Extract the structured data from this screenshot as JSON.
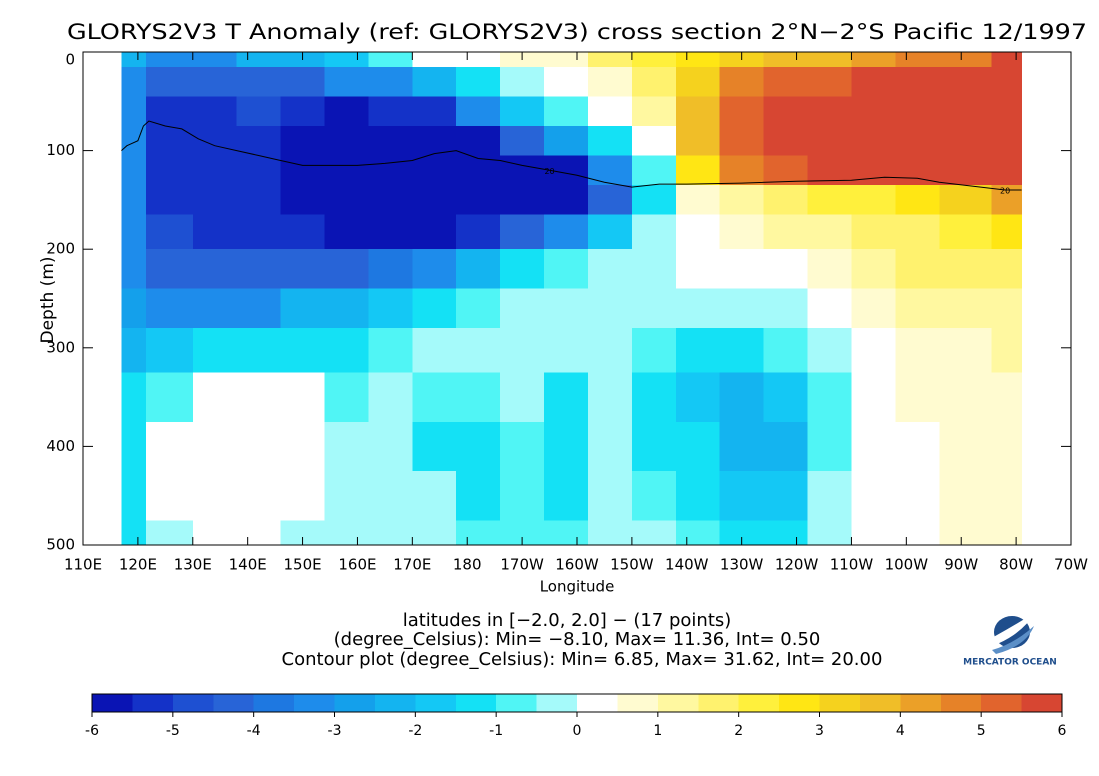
{
  "chart_data": {
    "type": "heatmap",
    "title": "GLORYS2V3 T Anomaly (ref: GLORYS2V3) cross section 2°N−2°S Pacific 12/1997",
    "x_label": "Longitude",
    "y_label": "Depth (m)",
    "notes": [
      "latitudes in [−2.0, 2.0] − (17 points)",
      "(degree_Celsius): Min= −8.10, Max= 11.36, Int= 0.50",
      "Contour plot (degree_Celsius): Min= 6.85, Max= 31.62, Int= 20.00"
    ],
    "logo": "MERCATOR OCEAN",
    "xlim": [
      110,
      290
    ],
    "xticks": [
      {
        "value": 110,
        "label": "110E"
      },
      {
        "value": 120,
        "label": "120E"
      },
      {
        "value": 130,
        "label": "130E"
      },
      {
        "value": 140,
        "label": "140E"
      },
      {
        "value": 150,
        "label": "150E"
      },
      {
        "value": 160,
        "label": "160E"
      },
      {
        "value": 170,
        "label": "170E"
      },
      {
        "value": 180,
        "label": "180"
      },
      {
        "value": 190,
        "label": "170W"
      },
      {
        "value": 200,
        "label": "160W"
      },
      {
        "value": 210,
        "label": "150W"
      },
      {
        "value": 220,
        "label": "140W"
      },
      {
        "value": 230,
        "label": "130W"
      },
      {
        "value": 240,
        "label": "120W"
      },
      {
        "value": 250,
        "label": "110W"
      },
      {
        "value": 260,
        "label": "100W"
      },
      {
        "value": 270,
        "label": "90W"
      },
      {
        "value": 280,
        "label": "80W"
      },
      {
        "value": 290,
        "label": "70W"
      }
    ],
    "ylim": [
      0,
      500
    ],
    "yticks": [
      0,
      100,
      200,
      300,
      400,
      500
    ],
    "y_inverted": true,
    "x": [
      117,
      126,
      134,
      142,
      150,
      158,
      166,
      174,
      182,
      190,
      198,
      206,
      214,
      222,
      230,
      238,
      246,
      254,
      262,
      270,
      281
    ],
    "y": [
      0,
      30,
      60,
      90,
      120,
      150,
      180,
      220,
      260,
      300,
      350,
      400,
      450,
      500
    ],
    "z": [
      [
        -2,
        -3,
        -3,
        -2,
        -2,
        -1.5,
        -0.5,
        0.5,
        0.5,
        1,
        1,
        2,
        2.5,
        3,
        3.5,
        4,
        4,
        4.5,
        5,
        5,
        6
      ],
      [
        -3,
        -4,
        -4,
        -4,
        -4,
        -3,
        -3,
        -2,
        -1,
        0,
        0.5,
        1,
        2,
        3.5,
        5,
        5.5,
        5.5,
        6,
        6,
        6,
        6
      ],
      [
        -3,
        -5,
        -5,
        -4.5,
        -5,
        -6,
        -5,
        -5,
        -3,
        -1.5,
        -0.5,
        0.5,
        1.5,
        4,
        5.5,
        6,
        6,
        6,
        6,
        6,
        6
      ],
      [
        -3,
        -5,
        -5,
        -5,
        -6,
        -6,
        -6,
        -6,
        -6,
        -4,
        -2.5,
        -1,
        0.5,
        4,
        5.5,
        6,
        6,
        6,
        6,
        6,
        6
      ],
      [
        -3,
        -5,
        -5,
        -5,
        -6,
        -6,
        -6,
        -6,
        -6,
        -6,
        -5.5,
        -3,
        -0.5,
        3,
        5,
        5.5,
        6,
        6,
        6,
        6,
        6
      ],
      [
        -3,
        -5,
        -5,
        -5,
        -5.5,
        -6,
        -6,
        -6,
        -6,
        -6,
        -6,
        -4,
        -1,
        1,
        1.5,
        2,
        2.5,
        2.5,
        3,
        3.5,
        4.5
      ],
      [
        -3,
        -4.5,
        -5,
        -5,
        -5,
        -5.5,
        -5.5,
        -5.5,
        -5,
        -4,
        -3,
        -1.5,
        0,
        0.5,
        1,
        1.5,
        1.5,
        2,
        2,
        2.5,
        3
      ],
      [
        -3,
        -4,
        -4,
        -4,
        -4,
        -4,
        -3.5,
        -3,
        -2,
        -1,
        -0.5,
        0,
        0,
        0.5,
        0.5,
        0.5,
        1,
        1.5,
        2,
        2,
        2
      ],
      [
        -2.5,
        -3,
        -3,
        -3,
        -2,
        -2,
        -1.5,
        -1,
        -0.5,
        0,
        0,
        0,
        0,
        0,
        0,
        0,
        0.5,
        1,
        1.5,
        1.5,
        1.5
      ],
      [
        -2,
        -1.5,
        -1,
        -1,
        -1,
        -1,
        -0.5,
        0,
        0,
        0,
        0,
        0,
        -0.5,
        -1,
        -1,
        -0.5,
        0,
        0.5,
        1,
        1,
        1.5
      ],
      [
        -1,
        -0.5,
        0.5,
        0.5,
        0.5,
        -0.5,
        0,
        -0.5,
        -0.5,
        0,
        -1,
        0,
        -1,
        -1.5,
        -2,
        -1.5,
        -0.5,
        0.5,
        1,
        1,
        1
      ],
      [
        -1,
        0.5,
        0.5,
        0.5,
        0.5,
        0,
        0,
        -1,
        -1,
        -0.5,
        -1,
        0,
        -1,
        -1,
        -2,
        -2,
        -0.5,
        0.5,
        0.5,
        1,
        1
      ],
      [
        -1,
        0.5,
        0.5,
        0.5,
        0.5,
        0,
        0,
        0,
        -1,
        -0.5,
        -1,
        0,
        -0.5,
        -1,
        -1.5,
        -1.5,
        0,
        0.5,
        0.5,
        1,
        1
      ],
      [
        -1,
        0,
        0.5,
        0.5,
        0,
        0,
        0,
        0,
        -0.5,
        -0.5,
        -0.5,
        0,
        0,
        -0.5,
        -1,
        -1,
        0,
        0.5,
        0.5,
        1,
        1
      ]
    ],
    "contours": [
      {
        "name": "20",
        "color": "#000000",
        "x": [
          117,
          118,
          120,
          121,
          122,
          125,
          128,
          131,
          134,
          138,
          142,
          146,
          150,
          155,
          160,
          165,
          170,
          174,
          178,
          182,
          186,
          190,
          195,
          200,
          205,
          210,
          215,
          220,
          230,
          240,
          250,
          256,
          262,
          266,
          272,
          278,
          281
        ],
        "values": [
          100,
          95,
          90,
          75,
          70,
          75,
          78,
          88,
          95,
          100,
          105,
          110,
          115,
          115,
          115,
          113,
          110,
          103,
          100,
          108,
          110,
          115,
          120,
          125,
          132,
          137,
          134,
          134,
          133,
          131,
          130,
          127,
          128,
          132,
          136,
          140,
          140
        ]
      }
    ],
    "colorbar": {
      "levels": [
        -6,
        -5.5,
        -5,
        -4.5,
        -4,
        -3.5,
        -3,
        -2.5,
        -2,
        -1.5,
        -1,
        -0.5,
        0,
        0.5,
        1,
        1.5,
        2,
        2.5,
        3,
        3.5,
        4,
        4.5,
        5,
        5.5,
        6
      ],
      "ticks": [
        -6,
        -5,
        -4,
        -3,
        -2,
        -1,
        0,
        1,
        2,
        3,
        4,
        5,
        6
      ],
      "colors": [
        "#0a14b4",
        "#1432c8",
        "#1e50d2",
        "#2864d7",
        "#1e78e1",
        "#1e8ceb",
        "#14a0eb",
        "#14b4f0",
        "#14c8f5",
        "#14e1f5",
        "#50f5f5",
        "#a5fafa",
        "#ffffff",
        "#fffbd0",
        "#fff8a0",
        "#fff26e",
        "#fff03c",
        "#ffe614",
        "#f5d21e",
        "#f0be28",
        "#eba028",
        "#e68228",
        "#e1642d",
        "#d74632",
        "#c8283c"
      ]
    }
  }
}
